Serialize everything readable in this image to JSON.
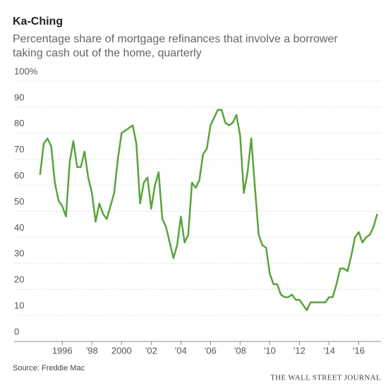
{
  "chart_data": {
    "type": "line",
    "title": "Ka-Ching",
    "subtitle": [
      "Percentage share of mortgage refinances that involve a borrower",
      "taking cash out of the home, quarterly"
    ],
    "source": "Source: Freddie Mac",
    "credit": "THE WALL STREET JOURNAL",
    "x": [
      1994.5,
      1994.75,
      1995,
      1995.25,
      1995.5,
      1995.75,
      1996,
      1996.25,
      1996.5,
      1996.75,
      1997,
      1997.25,
      1997.5,
      1997.75,
      1998,
      1998.25,
      1998.5,
      1998.75,
      1999,
      1999.25,
      1999.5,
      1999.75,
      2000,
      2000.25,
      2000.5,
      2000.75,
      2001,
      2001.25,
      2001.5,
      2001.75,
      2002,
      2002.25,
      2002.5,
      2002.75,
      2003,
      2003.25,
      2003.5,
      2003.75,
      2004,
      2004.25,
      2004.5,
      2004.75,
      2005,
      2005.25,
      2005.5,
      2005.75,
      2006,
      2006.25,
      2006.5,
      2006.75,
      2007,
      2007.25,
      2007.5,
      2007.75,
      2008,
      2008.25,
      2008.5,
      2008.75,
      2009,
      2009.25,
      2009.5,
      2009.75,
      2010,
      2010.25,
      2010.5,
      2010.75,
      2011,
      2011.25,
      2011.5,
      2011.75,
      2012,
      2012.25,
      2012.5,
      2012.75,
      2013,
      2013.25,
      2013.5,
      2013.75,
      2014,
      2014.25,
      2014.5,
      2014.75,
      2015,
      2015.25,
      2015.5,
      2015.75,
      2016,
      2016.25,
      2016.5,
      2016.75,
      2017,
      2017.25
    ],
    "series": [
      {
        "color": "#5aa33b",
        "values": [
          64,
          76,
          78,
          75,
          61,
          54,
          52,
          48,
          69,
          77,
          67,
          67,
          73,
          63,
          57,
          46,
          53,
          49,
          47,
          52,
          57,
          70,
          80,
          81,
          82,
          83,
          76,
          53,
          61,
          63,
          51,
          60,
          65,
          47,
          44,
          38,
          32,
          37,
          48,
          38,
          41,
          61,
          59,
          62,
          72,
          74,
          83,
          86,
          89,
          89,
          84,
          83,
          84,
          87,
          79,
          57,
          65,
          78,
          59,
          41,
          37,
          36,
          26,
          22,
          22,
          18,
          17,
          17,
          18,
          16,
          16,
          14,
          12,
          15,
          15,
          15,
          15,
          15,
          17,
          17,
          22,
          28,
          28,
          27,
          33,
          40,
          42,
          38,
          40,
          41,
          44,
          49
        ]
      }
    ],
    "xlim": [
      1992.75,
      2017.5
    ],
    "xticks": [
      1996,
      {
        "value": 1998,
        "label": "'98"
      },
      2000,
      {
        "value": 2002,
        "label": "'02"
      },
      {
        "value": 2004,
        "label": "'04"
      },
      {
        "value": 2006,
        "label": "'06"
      },
      {
        "value": 2008,
        "label": "'08"
      },
      {
        "value": 2010,
        "label": "'10"
      },
      {
        "value": 2012,
        "label": "'12"
      },
      {
        "value": 2014,
        "label": "'14"
      },
      {
        "value": 2016,
        "label": "'16"
      }
    ],
    "ylim": [
      0,
      100
    ],
    "yticks": [
      0,
      10,
      20,
      30,
      40,
      50,
      60,
      70,
      80,
      90,
      {
        "value": 100,
        "label": "100%"
      }
    ],
    "grid": true
  }
}
